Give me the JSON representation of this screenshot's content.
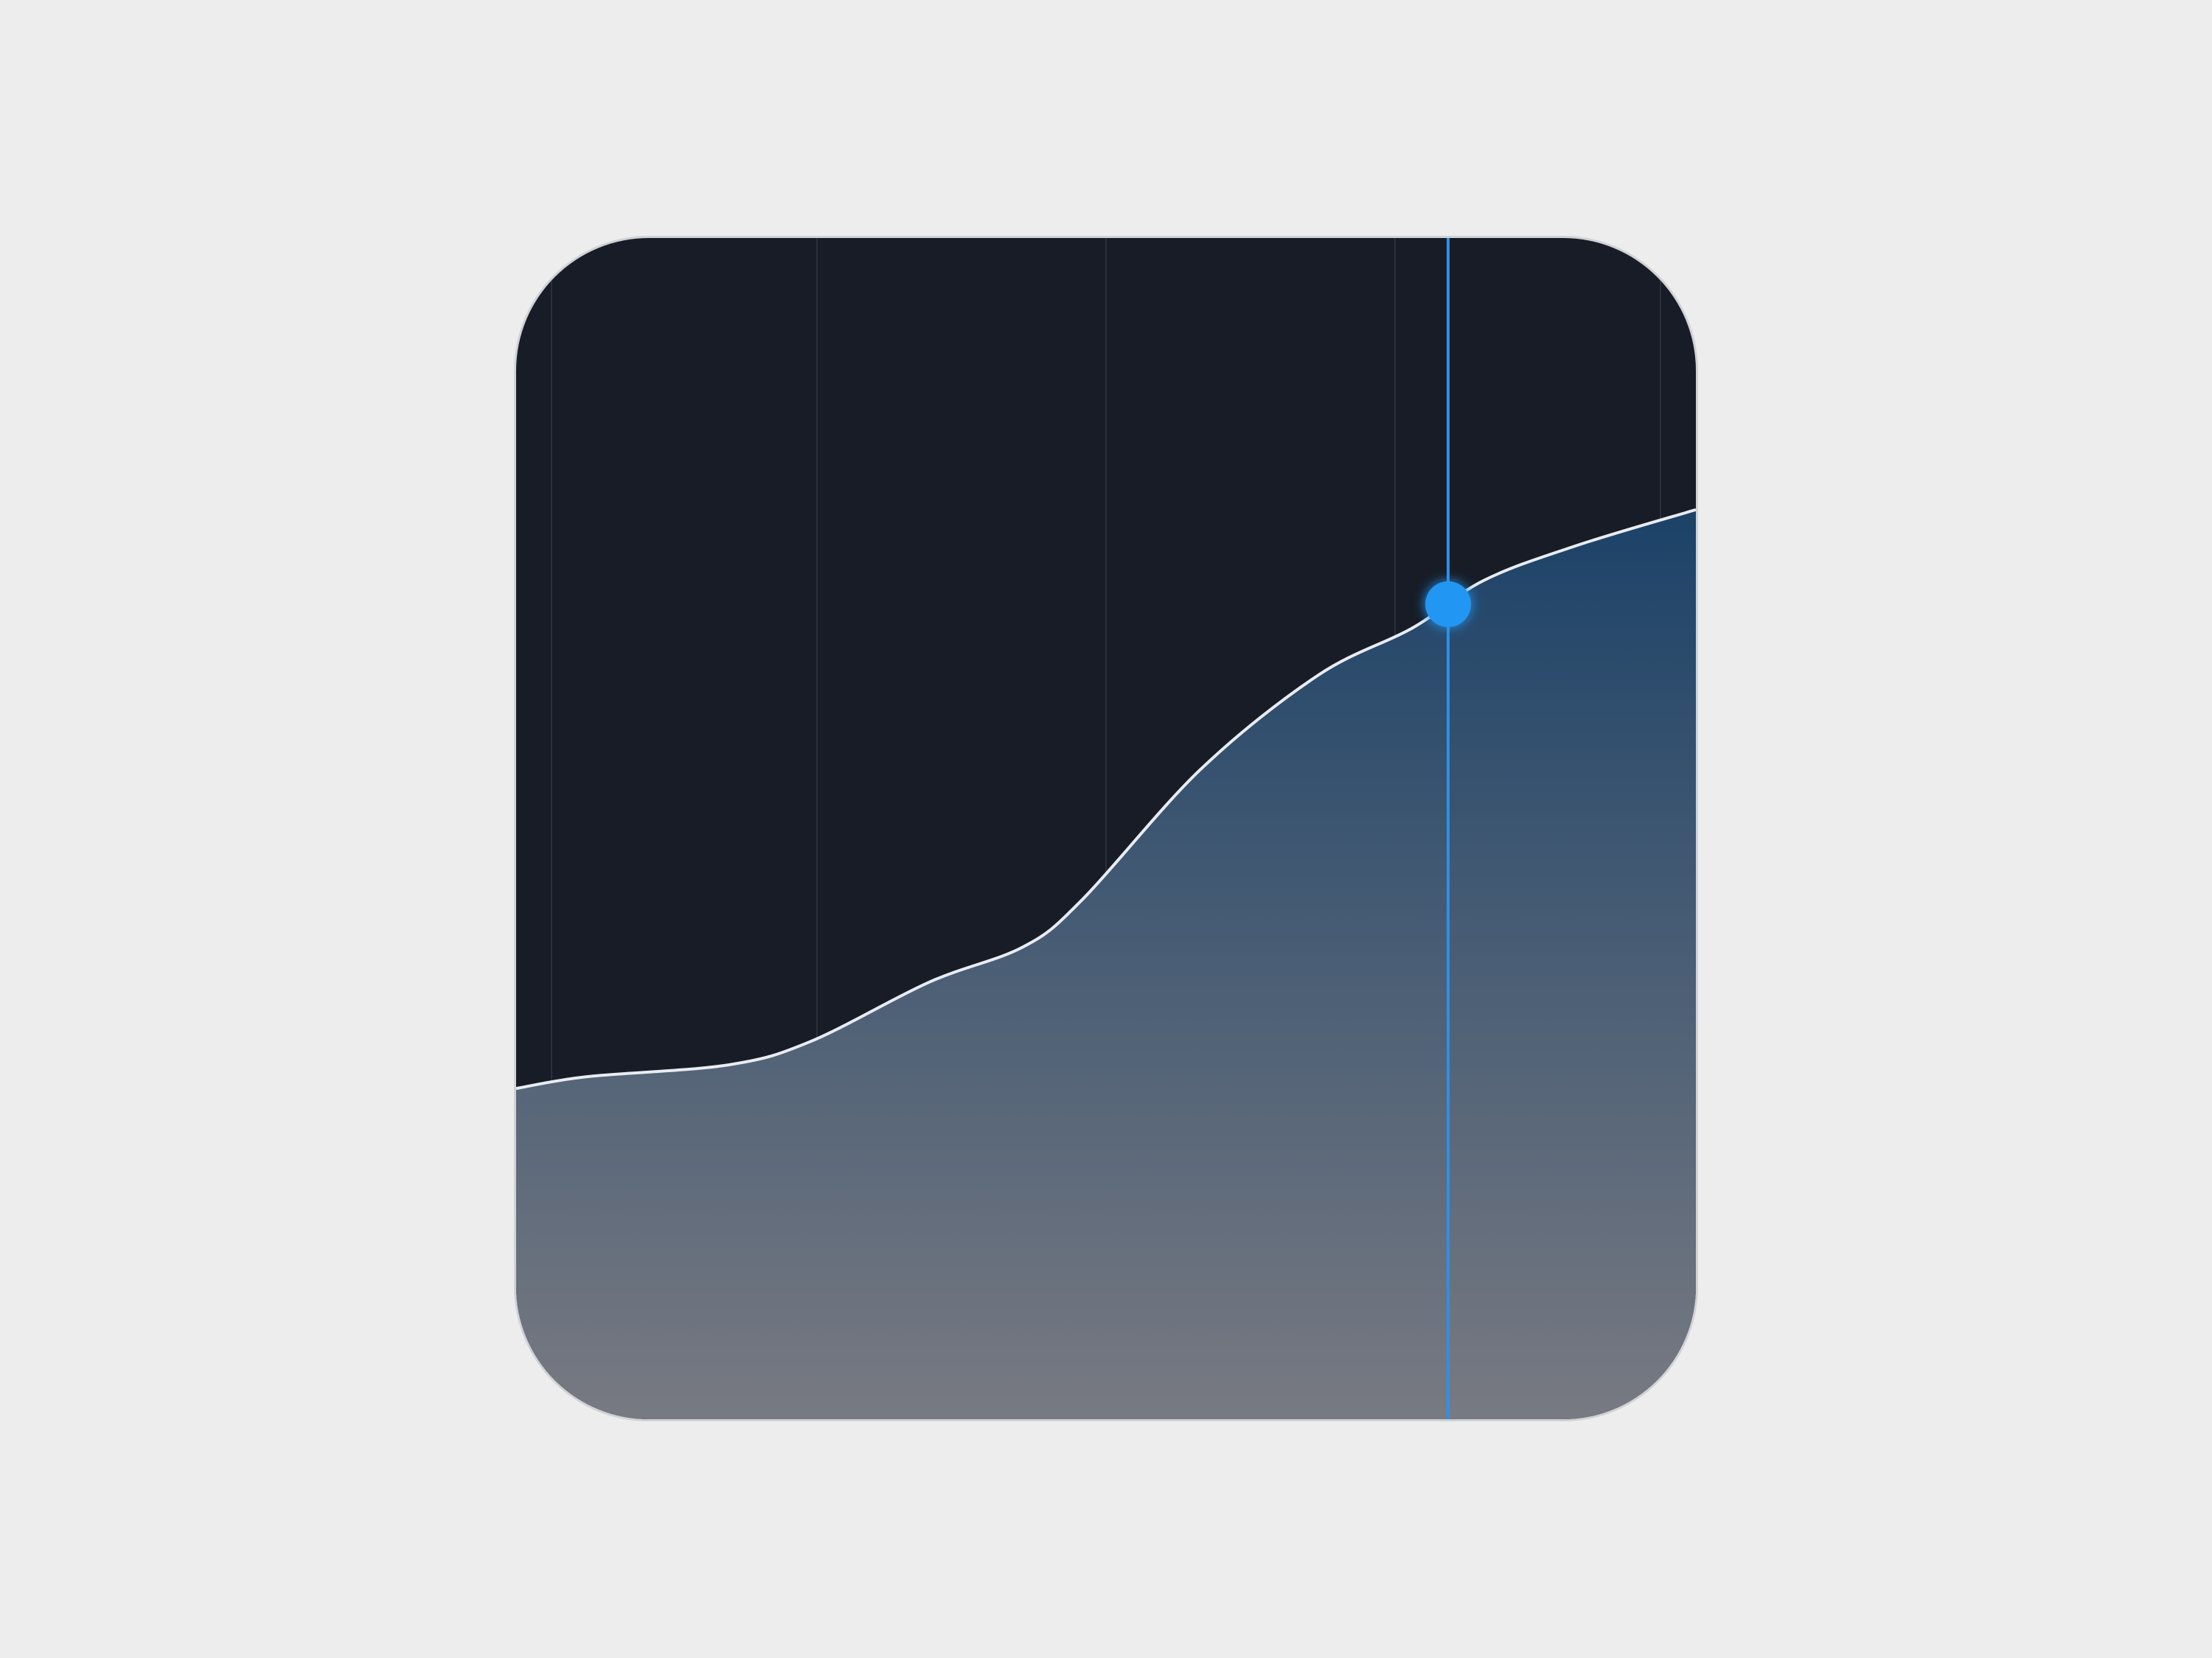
{
  "widget": {
    "name": "area-chart-widget",
    "colors": {
      "page_background": "#ededed",
      "card_background": "#181c26",
      "card_border": "#d0d2d6",
      "gridline": "#3a4050",
      "curve_stroke": "#e9ecf2",
      "area_fill_top": "#1c4268",
      "area_fill_bottom": "#787a82",
      "cursor_line": "#2f8fe6",
      "cursor_dot": "#2196f3"
    }
  },
  "chart_data": {
    "type": "area",
    "title": "",
    "xlabel": "",
    "ylabel": "",
    "xlim": [
      0,
      1
    ],
    "ylim": [
      0,
      1
    ],
    "grid": true,
    "gridlines_x": [
      0.03,
      0.255,
      0.5,
      0.745,
      0.97
    ],
    "series": [
      {
        "values_x": [
          0,
          0.06,
          0.18,
          0.25,
          0.35,
          0.43,
          0.48,
          0.58,
          0.68,
          0.76,
          0.82,
          0.9,
          1.0
        ],
        "values_y": [
          0.28,
          0.29,
          0.3,
          0.32,
          0.37,
          0.4,
          0.44,
          0.55,
          0.63,
          0.67,
          0.71,
          0.74,
          0.77
        ]
      }
    ],
    "cursor": {
      "x": 0.79,
      "y": 0.69
    }
  }
}
